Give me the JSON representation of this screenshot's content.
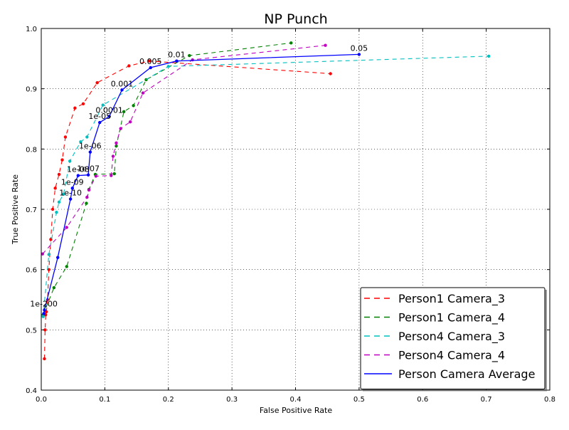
{
  "chart_data": {
    "type": "line",
    "title": "NP Punch",
    "xlabel": "False Positive Rate",
    "ylabel": "True Positive Rate",
    "xlim": [
      0.0,
      0.8
    ],
    "ylim": [
      0.4,
      1.0
    ],
    "xticks": [
      "0.0",
      "0.1",
      "0.2",
      "0.3",
      "0.4",
      "0.5",
      "0.6",
      "0.7",
      "0.8"
    ],
    "yticks": [
      "0.4",
      "0.5",
      "0.6",
      "0.7",
      "0.8",
      "0.9",
      "1.0"
    ],
    "grid": true,
    "legend_position": "lower-right",
    "series": [
      {
        "name": "Person1 Camera_3",
        "color": "#ff0000",
        "style": "dashed",
        "x": [
          0.005,
          0.006,
          0.007,
          0.008,
          0.01,
          0.012,
          0.015,
          0.018,
          0.022,
          0.028,
          0.033,
          0.038,
          0.053,
          0.066,
          0.088,
          0.138,
          0.17,
          0.455
        ],
        "y": [
          0.452,
          0.5,
          0.525,
          0.53,
          0.55,
          0.6,
          0.65,
          0.7,
          0.735,
          0.758,
          0.782,
          0.82,
          0.868,
          0.875,
          0.91,
          0.938,
          0.946,
          0.925
        ]
      },
      {
        "name": "Person1 Camera_4",
        "color": "#008000",
        "style": "dashed",
        "x": [
          0.003,
          0.02,
          0.04,
          0.071,
          0.075,
          0.085,
          0.115,
          0.118,
          0.13,
          0.145,
          0.165,
          0.233,
          0.393
        ],
        "y": [
          0.525,
          0.57,
          0.605,
          0.71,
          0.733,
          0.758,
          0.759,
          0.805,
          0.862,
          0.872,
          0.915,
          0.955,
          0.976
        ]
      },
      {
        "name": "Person4 Camera_3",
        "color": "#00bfbf",
        "style": "dashed",
        "x": [
          0.003,
          0.012,
          0.024,
          0.028,
          0.035,
          0.045,
          0.062,
          0.072,
          0.097,
          0.2,
          0.704
        ],
        "y": [
          0.522,
          0.625,
          0.695,
          0.712,
          0.725,
          0.78,
          0.812,
          0.82,
          0.873,
          0.937,
          0.954
        ]
      },
      {
        "name": "Person4 Camera_4",
        "color": "#bf00bf",
        "style": "dashed",
        "x": [
          0.002,
          0.04,
          0.072,
          0.075,
          0.086,
          0.11,
          0.113,
          0.118,
          0.125,
          0.14,
          0.16,
          0.238,
          0.447
        ],
        "y": [
          0.626,
          0.67,
          0.72,
          0.732,
          0.755,
          0.756,
          0.788,
          0.81,
          0.834,
          0.845,
          0.893,
          0.948,
          0.972
        ]
      },
      {
        "name": "Person Camera Average",
        "color": "#0000ff",
        "style": "solid",
        "x": [
          0.004,
          0.005,
          0.026,
          0.046,
          0.049,
          0.058,
          0.074,
          0.077,
          0.092,
          0.107,
          0.127,
          0.172,
          0.213,
          0.5
        ],
        "y": [
          0.527,
          0.533,
          0.62,
          0.717,
          0.735,
          0.756,
          0.757,
          0.795,
          0.844,
          0.854,
          0.898,
          0.935,
          0.946,
          0.957
        ]
      }
    ],
    "annotations": [
      {
        "text": "1e-200",
        "x": 0.004,
        "y": 0.533
      },
      {
        "text": "1e-10",
        "x": 0.046,
        "y": 0.717
      },
      {
        "text": "1e-09",
        "x": 0.049,
        "y": 0.735
      },
      {
        "text": "1e-08",
        "x": 0.058,
        "y": 0.756
      },
      {
        "text": "1e-07",
        "x": 0.074,
        "y": 0.757
      },
      {
        "text": "1e-06",
        "x": 0.077,
        "y": 0.795
      },
      {
        "text": "1e-05",
        "x": 0.092,
        "y": 0.844
      },
      {
        "text": "0.0001",
        "x": 0.107,
        "y": 0.854
      },
      {
        "text": "0.001",
        "x": 0.127,
        "y": 0.898
      },
      {
        "text": "0.005",
        "x": 0.172,
        "y": 0.935
      },
      {
        "text": "0.01",
        "x": 0.213,
        "y": 0.946
      },
      {
        "text": "0.05",
        "x": 0.5,
        "y": 0.957
      }
    ]
  }
}
